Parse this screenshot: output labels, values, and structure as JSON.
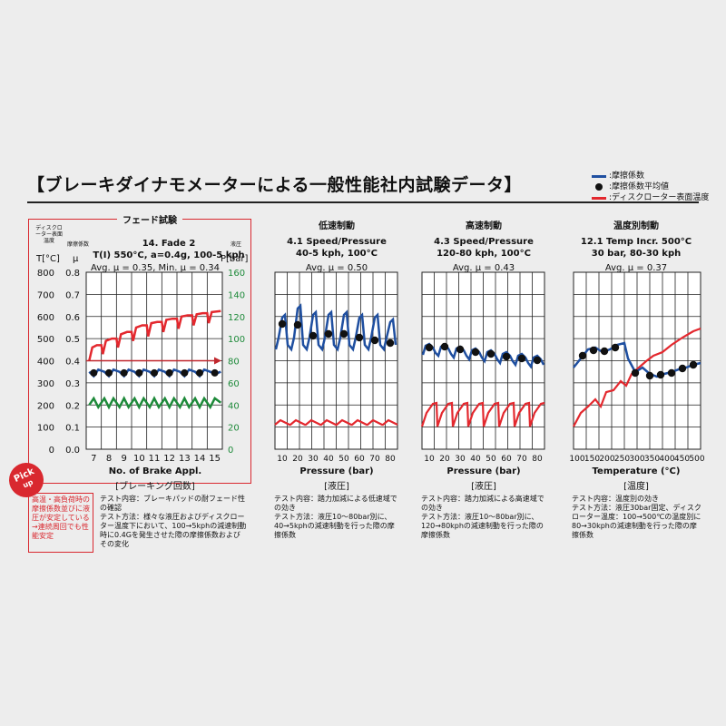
{
  "header": {
    "title": "【ブレーキダイナモメーターによる一般性能社内試験データ】"
  },
  "legend": [
    {
      "label": ":摩擦係数",
      "color": "#1f4fa0",
      "kind": "line"
    },
    {
      "label": ":摩擦係数平均値",
      "color": "#111111",
      "kind": "dot"
    },
    {
      "label": ":ディスクローター表面温度",
      "color": "#e3282e",
      "kind": "line"
    }
  ],
  "fade": {
    "section_title": "フェード試験",
    "hdr_temp": "ディスクローター表面温度",
    "hdr_mu": "摩擦係数",
    "hdr_press": "液圧",
    "unit_temp": "T[°C]",
    "unit_mu": "μ",
    "unit_press": "P[bar]"
  },
  "pick": {
    "line1": "Pick",
    "line2": "up",
    "note": "高温・高負荷時の摩擦係数並びに液圧が安定している→連続周回でも性能安定"
  },
  "chart_data": [
    {
      "type": "line",
      "title": "14. Fade 2",
      "subtitle": "T(I) 550°C, a=0.4g, 100-5 kph",
      "avg_text": "Avg. μ = 0.35, Min. μ = 0.34",
      "xlabel": "No. of Brake Appl.",
      "xlabel_jp": "[ブレーキング回数]",
      "x_ticks": [
        "7",
        "8",
        "9",
        "10",
        "11",
        "12",
        "13",
        "14",
        "15"
      ],
      "y_temp_ticks": [
        "800",
        "700",
        "600",
        "500",
        "400",
        "300",
        "200",
        "100",
        "0"
      ],
      "y_mu_ticks": [
        "0.8",
        "0.7",
        "0.6",
        "0.5",
        "0.4",
        "0.3",
        "0.2",
        "0.1",
        "0.0"
      ],
      "y_press_ticks": [
        "160",
        "140",
        "120",
        "100",
        "80",
        "60",
        "40",
        "20",
        "0"
      ],
      "xlim": [
        6.5,
        15.5
      ],
      "ylim_mu": [
        0,
        0.8
      ],
      "mu_avg": 0.35,
      "series": [
        {
          "color": "#1f4fa0",
          "points": [
            [
              6.7,
              0.35
            ],
            [
              7.0,
              0.33
            ],
            [
              7.3,
              0.36
            ],
            [
              7.7,
              0.35
            ],
            [
              8.0,
              0.33
            ],
            [
              8.3,
              0.36
            ],
            [
              8.7,
              0.35
            ],
            [
              9.0,
              0.33
            ],
            [
              9.3,
              0.36
            ],
            [
              9.7,
              0.35
            ],
            [
              10.0,
              0.33
            ],
            [
              10.3,
              0.36
            ],
            [
              10.7,
              0.35
            ],
            [
              11.0,
              0.33
            ],
            [
              11.3,
              0.36
            ],
            [
              11.7,
              0.35
            ],
            [
              12.0,
              0.33
            ],
            [
              12.3,
              0.36
            ],
            [
              12.7,
              0.35
            ],
            [
              13.0,
              0.33
            ],
            [
              13.3,
              0.36
            ],
            [
              13.7,
              0.35
            ],
            [
              14.0,
              0.33
            ],
            [
              14.3,
              0.36
            ],
            [
              14.7,
              0.35
            ],
            [
              15.0,
              0.34
            ],
            [
              15.4,
              0.35
            ]
          ]
        },
        {
          "color": "#e3282e",
          "points": [
            [
              6.7,
              400
            ],
            [
              6.9,
              460
            ],
            [
              7.2,
              470
            ],
            [
              7.5,
              470
            ],
            [
              7.6,
              430
            ],
            [
              7.8,
              490
            ],
            [
              8.2,
              500
            ],
            [
              8.5,
              500
            ],
            [
              8.6,
              460
            ],
            [
              8.8,
              520
            ],
            [
              9.2,
              530
            ],
            [
              9.5,
              530
            ],
            [
              9.6,
              490
            ],
            [
              9.8,
              550
            ],
            [
              10.2,
              560
            ],
            [
              10.5,
              560
            ],
            [
              10.6,
              510
            ],
            [
              10.8,
              570
            ],
            [
              11.2,
              575
            ],
            [
              11.5,
              575
            ],
            [
              11.6,
              530
            ],
            [
              11.8,
              585
            ],
            [
              12.2,
              590
            ],
            [
              12.5,
              590
            ],
            [
              12.6,
              545
            ],
            [
              12.8,
              600
            ],
            [
              13.2,
              605
            ],
            [
              13.5,
              605
            ],
            [
              13.6,
              560
            ],
            [
              13.8,
              610
            ],
            [
              14.2,
              615
            ],
            [
              14.5,
              615
            ],
            [
              14.6,
              570
            ],
            [
              14.8,
              620
            ],
            [
              15.4,
              625
            ]
          ]
        },
        {
          "color": "#1e8a3a",
          "points": [
            [
              6.7,
              40
            ],
            [
              7.0,
              46
            ],
            [
              7.3,
              38
            ],
            [
              7.7,
              46
            ],
            [
              8.0,
              38
            ],
            [
              8.3,
              46
            ],
            [
              8.7,
              38
            ],
            [
              9.0,
              46
            ],
            [
              9.3,
              38
            ],
            [
              9.7,
              46
            ],
            [
              10.0,
              38
            ],
            [
              10.3,
              46
            ],
            [
              10.7,
              38
            ],
            [
              11.0,
              46
            ],
            [
              11.3,
              38
            ],
            [
              11.7,
              46
            ],
            [
              12.0,
              38
            ],
            [
              12.3,
              46
            ],
            [
              12.7,
              38
            ],
            [
              13.0,
              46
            ],
            [
              13.3,
              38
            ],
            [
              13.7,
              46
            ],
            [
              14.0,
              38
            ],
            [
              14.3,
              46
            ],
            [
              14.7,
              38
            ],
            [
              15.0,
              46
            ],
            [
              15.4,
              42
            ]
          ]
        }
      ],
      "dots": [
        [
          7,
          0.345
        ],
        [
          8,
          0.345
        ],
        [
          9,
          0.345
        ],
        [
          10,
          0.345
        ],
        [
          11,
          0.345
        ],
        [
          12,
          0.345
        ],
        [
          13,
          0.345
        ],
        [
          14,
          0.345
        ],
        [
          15,
          0.345
        ]
      ],
      "desc": "テスト内容：ブレーキパッドの耐フェード性の確認\nテスト方法：様々な液圧およびディスクローター温度下において、100→5kphの減速制動時に0.4Gを発生させた際の摩擦係数およびその変化"
    },
    {
      "type": "line",
      "section_title": "低速制動",
      "title": "4.1 Speed/Pressure",
      "subtitle": "40-5 kph, 100°C",
      "avg_text": "Avg. μ = 0.50",
      "xlabel": "Pressure (bar)",
      "xlabel_jp": "[液圧]",
      "x_ticks": [
        "10",
        "20",
        "30",
        "40",
        "50",
        "60",
        "70",
        "80"
      ],
      "desc": "テスト内容：踏力加減による低速域での効き\nテスト方法：液圧10〜80bar別に、40→5kphの減速制動を行った際の摩擦係数"
    },
    {
      "type": "line",
      "section_title": "高速制動",
      "title": "4.3 Speed/Pressure",
      "subtitle": "120-80 kph, 100°C",
      "avg_text": "Avg. μ = 0.43",
      "xlabel": "Pressure (bar)",
      "xlabel_jp": "[液圧]",
      "x_ticks": [
        "10",
        "20",
        "30",
        "40",
        "50",
        "60",
        "70",
        "80"
      ],
      "desc": "テスト内容：踏力加減による高速域での効き\nテスト方法：液圧10〜80bar別に、120→80kphの減速制動を行った際の摩擦係数"
    },
    {
      "type": "line",
      "section_title": "温度別制動",
      "title": "12.1 Temp Incr. 500°C",
      "subtitle": "30 bar, 80-30 kph",
      "avg_text": "Avg. μ = 0.37",
      "xlabel": "Temperature (°C)",
      "xlabel_jp": "[温度]",
      "x_ticks": [
        "100",
        "150",
        "200",
        "250",
        "300",
        "350",
        "400",
        "450",
        "500"
      ],
      "desc": "テスト内容：温度別の効き\nテスト方法：液圧30bar固定、ディスクローター温度：100→500℃の温度別に80→30kphの減速制動を行った際の摩擦係数"
    }
  ]
}
